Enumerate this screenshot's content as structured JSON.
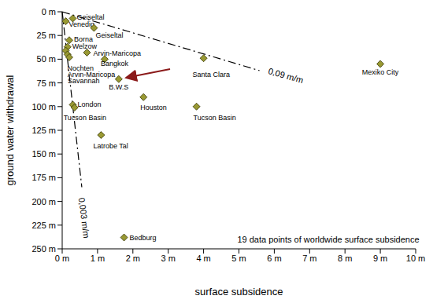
{
  "chart_data": {
    "type": "scatter",
    "x_label": "surface subsidence",
    "y_label": "ground water withdrawal",
    "x": [
      0.3,
      0.1,
      0.9,
      0.2,
      0.15,
      0.7,
      0.1,
      0.15,
      0.2,
      1.2,
      1.6,
      4.0,
      9.0,
      0.3,
      0.35,
      2.3,
      3.8,
      1.1,
      1.75
    ],
    "values": [
      7,
      10,
      17,
      30,
      37,
      43,
      41,
      45,
      48,
      50,
      71,
      49,
      55,
      98,
      101,
      90,
      100,
      130,
      238
    ],
    "labels": [
      "Geiseltal",
      "Venedig",
      "Geiseltal",
      "Borna",
      "Welzow",
      "Arvin-Maricopa",
      "Nochten",
      "Arvin-Maricopa",
      "Savannah",
      "Bangkok",
      "B.W.S",
      "Santa Clara",
      "Mexiko City",
      "London",
      "Tucson Basin",
      "Houston",
      "Tucson Basin",
      "Latrobe Tal",
      "Bedburg"
    ],
    "color": "#999933",
    "marker": "diamond",
    "xlim": [
      0,
      10
    ],
    "xticks": [
      {
        "value": 0,
        "label": "0 m"
      },
      {
        "value": 1,
        "label": "1 m"
      },
      {
        "value": 2,
        "label": "2 m"
      },
      {
        "value": 3,
        "label": "3 m"
      },
      {
        "value": 4,
        "label": "4 m"
      },
      {
        "value": 5,
        "label": "5 m"
      },
      {
        "value": 6,
        "label": "6 m"
      },
      {
        "value": 7,
        "label": "7 m"
      },
      {
        "value": 8,
        "label": "8 m"
      },
      {
        "value": 9,
        "label": "9 m"
      },
      {
        "value": 10,
        "label": "10 m"
      }
    ],
    "ylim": [
      0,
      250
    ],
    "yticks": [
      {
        "value": 0,
        "label": "0 m"
      },
      {
        "value": 25,
        "label": "25 m"
      },
      {
        "value": 50,
        "label": "50 m"
      },
      {
        "value": 75,
        "label": "75 m"
      },
      {
        "value": 100,
        "label": "100 m"
      },
      {
        "value": 125,
        "label": "125 m"
      },
      {
        "value": 150,
        "label": "150 m"
      },
      {
        "value": 175,
        "label": "175 m"
      },
      {
        "value": 200,
        "label": "200 m"
      },
      {
        "value": 225,
        "label": "225 m"
      },
      {
        "value": 250,
        "label": "250 m"
      }
    ],
    "reference_lines": [
      {
        "label": "0,09 m/m",
        "slope": 0.09,
        "y": [
          0,
          62
        ],
        "line_style": "dashdot"
      },
      {
        "label": "0,003 m/m",
        "slope": 0.003,
        "y": [
          0,
          185
        ],
        "line_style": "dashdot"
      }
    ],
    "annotations": [
      "19 data points of worldwide surface subsidence"
    ],
    "grid": false
  }
}
